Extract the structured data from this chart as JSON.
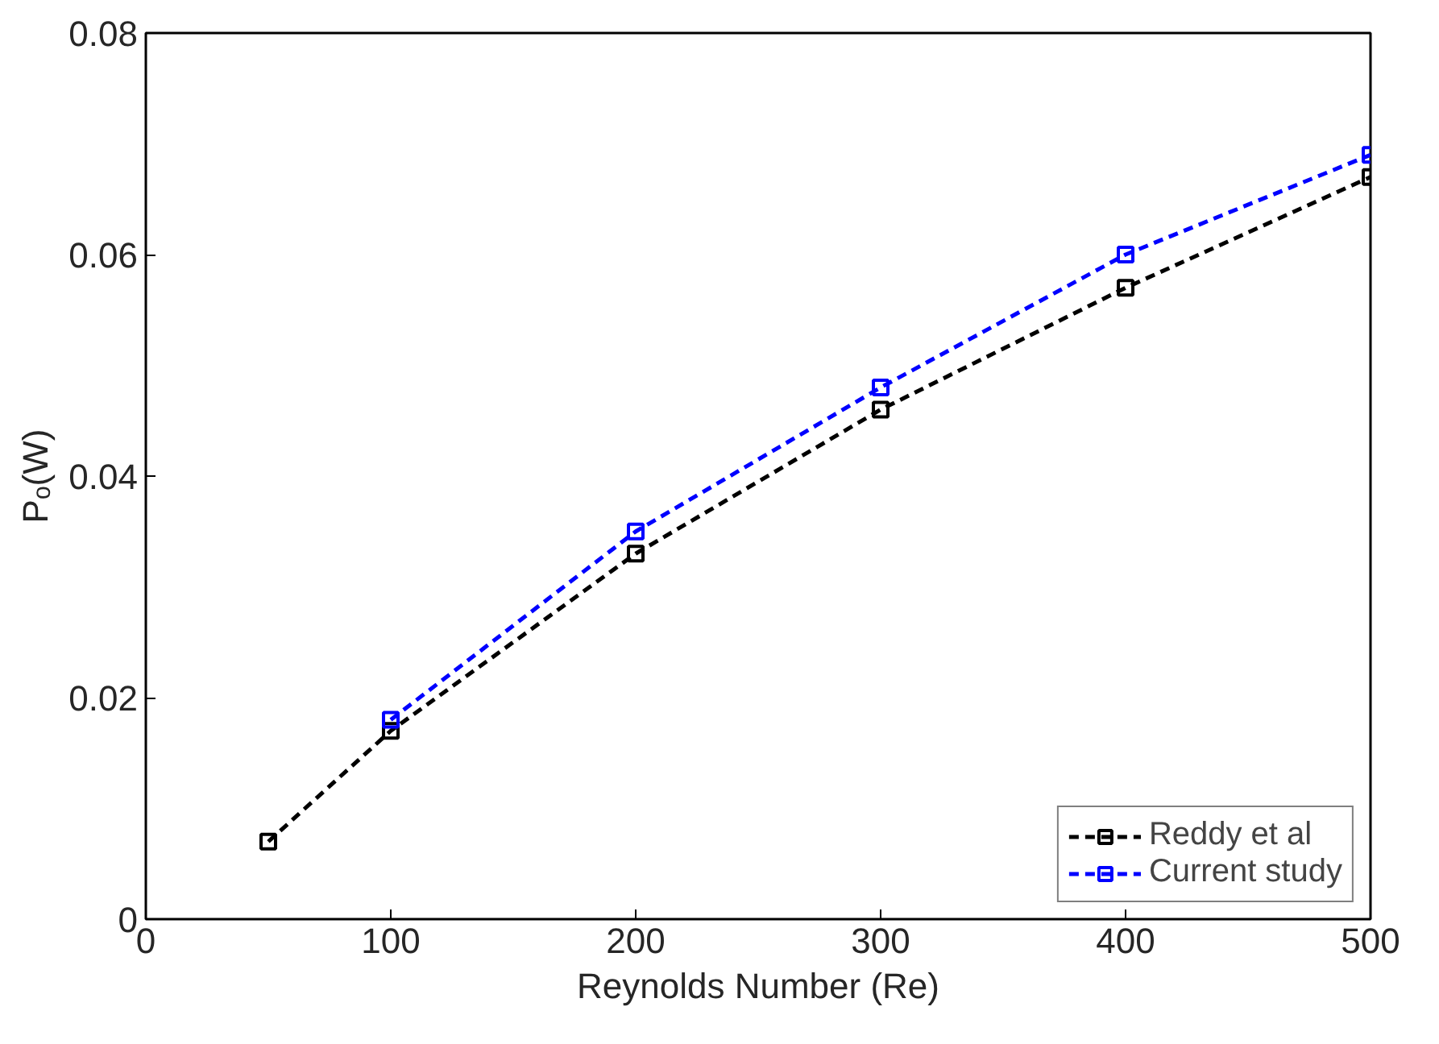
{
  "chart_data": {
    "type": "line",
    "xlabel": "Reynolds Number (Re)",
    "ylabel": "Pₒ(W)",
    "xlim": [
      0,
      500
    ],
    "ylim": [
      0,
      0.08
    ],
    "xticks": [
      0,
      100,
      200,
      300,
      400,
      500
    ],
    "yticks": [
      0,
      0.02,
      0.04,
      0.06,
      0.08
    ],
    "grid": false,
    "legend": "bottom right",
    "marker": "square",
    "line_style": "dashed",
    "series": [
      {
        "name": "Reddy et al",
        "color": "#000000",
        "x": [
          50,
          100,
          200,
          300,
          400,
          500
        ],
        "values": [
          0.007,
          0.017,
          0.033,
          0.046,
          0.057,
          0.067
        ]
      },
      {
        "name": "Current study",
        "color": "#0000ff",
        "x": [
          100,
          200,
          300,
          400,
          500
        ],
        "values": [
          0.018,
          0.035,
          0.048,
          0.06,
          0.069
        ]
      }
    ]
  }
}
